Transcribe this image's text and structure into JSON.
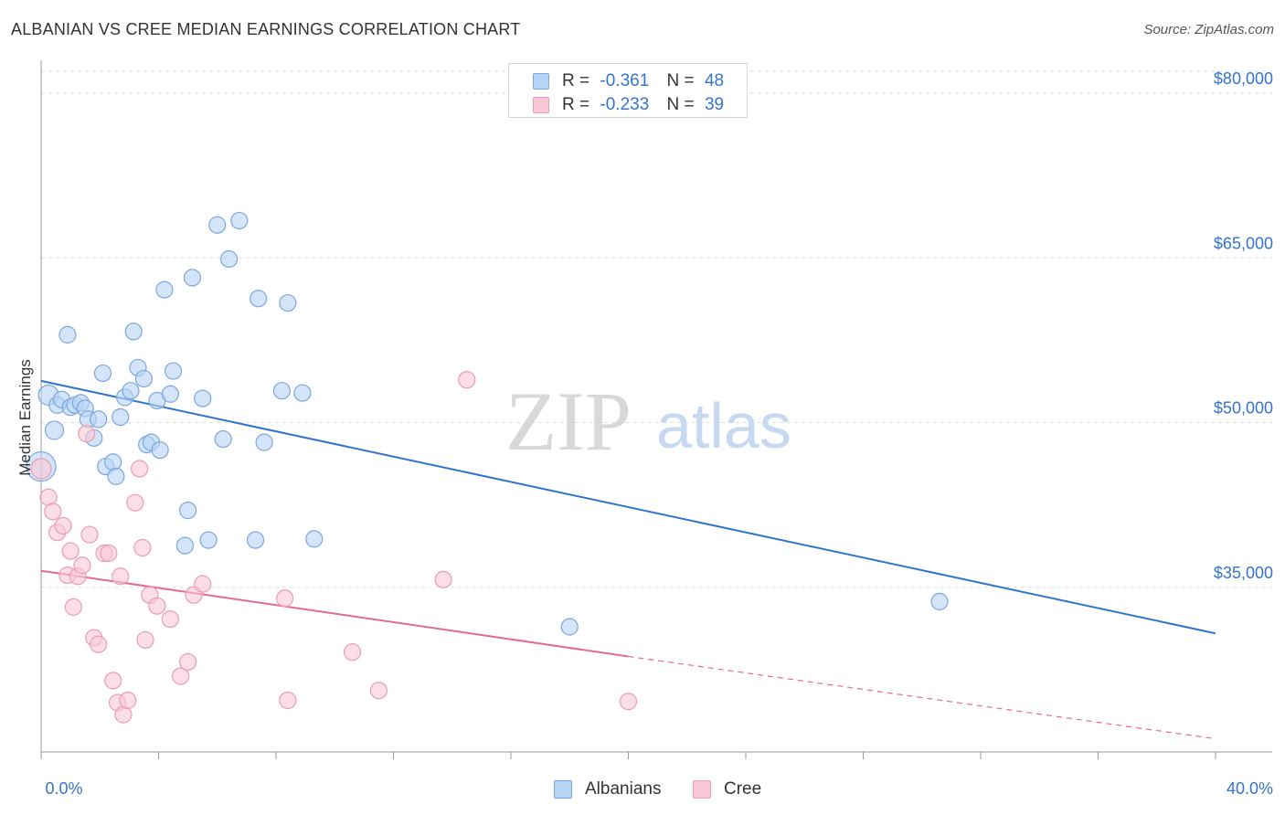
{
  "title": "ALBANIAN VS CREE MEDIAN EARNINGS CORRELATION CHART",
  "source": "Source: ZipAtlas.com",
  "watermark": {
    "zip": "ZIP",
    "atlas": "atlas"
  },
  "colors": {
    "albanian_fill": "#b7d3f5",
    "albanian_stroke": "#7aa7e0",
    "albanian_line": "#2f74cf",
    "cree_fill": "#f8c8d6",
    "cree_stroke": "#ec9bb5",
    "cree_line": "#e56a93",
    "axis_label": "#3474cc",
    "grid": "#dddddd"
  },
  "legend": {
    "rows": [
      {
        "r_label": "R =",
        "r_value": "-0.361",
        "n_label": "N =",
        "n_value": "48",
        "series": "albanians"
      },
      {
        "r_label": "R =",
        "r_value": "-0.233",
        "n_label": "N =",
        "n_value": "39",
        "series": "cree"
      }
    ]
  },
  "bottom_legend": {
    "albanians": "Albanians",
    "cree": "Cree"
  },
  "chart_data": {
    "type": "scatter",
    "title": "ALBANIAN VS CREE MEDIAN EARNINGS CORRELATION CHART",
    "xlabel": "",
    "ylabel": "Median Earnings",
    "xlim": [
      0,
      40
    ],
    "ylim": [
      20000,
      82000
    ],
    "x_tick_labels": [
      "0.0%",
      "40.0%"
    ],
    "y_ticks": [
      35000,
      50000,
      65000,
      80000
    ],
    "y_tick_labels": [
      "$35,000",
      "$50,000",
      "$65,000",
      "$80,000"
    ],
    "grid": true,
    "series": [
      {
        "name": "Albanians",
        "r": -0.361,
        "n": 48,
        "trend": {
          "x": [
            0,
            40
          ],
          "y": [
            53800,
            30800
          ],
          "style": "solid"
        },
        "points": [
          [
            0.0,
            46000,
            16
          ],
          [
            0.25,
            52500,
            11
          ],
          [
            0.45,
            49300,
            10
          ],
          [
            0.55,
            51600,
            9
          ],
          [
            0.7,
            52100,
            9
          ],
          [
            0.9,
            58000,
            9
          ],
          [
            1.0,
            51400,
            9
          ],
          [
            1.15,
            51600,
            9
          ],
          [
            1.35,
            51800,
            9
          ],
          [
            1.5,
            51300,
            9
          ],
          [
            1.6,
            50300,
            9
          ],
          [
            1.8,
            48600,
            9
          ],
          [
            1.95,
            50300,
            9
          ],
          [
            2.1,
            54500,
            9
          ],
          [
            2.2,
            46000,
            9
          ],
          [
            2.45,
            46400,
            9
          ],
          [
            2.55,
            45100,
            9
          ],
          [
            2.7,
            50500,
            9
          ],
          [
            2.85,
            52300,
            9
          ],
          [
            3.05,
            52900,
            9
          ],
          [
            3.15,
            58300,
            9
          ],
          [
            3.3,
            55000,
            9
          ],
          [
            3.5,
            54000,
            9
          ],
          [
            3.6,
            48000,
            9
          ],
          [
            3.75,
            48200,
            9
          ],
          [
            3.95,
            52000,
            9
          ],
          [
            4.05,
            47500,
            9
          ],
          [
            4.2,
            62100,
            9
          ],
          [
            4.4,
            52600,
            9
          ],
          [
            4.5,
            54700,
            9
          ],
          [
            4.9,
            38800,
            9
          ],
          [
            5.0,
            42000,
            9
          ],
          [
            5.15,
            63200,
            9
          ],
          [
            5.5,
            52200,
            9
          ],
          [
            5.7,
            39300,
            9
          ],
          [
            6.0,
            68000,
            9
          ],
          [
            6.2,
            48500,
            9
          ],
          [
            6.4,
            64900,
            9
          ],
          [
            6.75,
            68400,
            9
          ],
          [
            7.3,
            39300,
            9
          ],
          [
            7.4,
            61300,
            9
          ],
          [
            7.6,
            48200,
            9
          ],
          [
            8.2,
            52900,
            9
          ],
          [
            8.4,
            60900,
            9
          ],
          [
            8.9,
            52700,
            9
          ],
          [
            9.3,
            39400,
            9
          ],
          [
            18.0,
            31400,
            9
          ],
          [
            30.6,
            33700,
            9
          ]
        ]
      },
      {
        "name": "Cree",
        "r": -0.233,
        "n": 39,
        "trend": {
          "x": [
            0,
            20
          ],
          "y": [
            36500,
            28700
          ],
          "style": "solid",
          "dashed_to": {
            "x": 40,
            "y": 21200
          }
        },
        "points": [
          [
            0.0,
            45800,
            11
          ],
          [
            0.25,
            43200,
            9
          ],
          [
            0.4,
            41900,
            9
          ],
          [
            0.55,
            40000,
            9
          ],
          [
            0.75,
            40600,
            9
          ],
          [
            0.9,
            36100,
            9
          ],
          [
            1.0,
            38300,
            9
          ],
          [
            1.1,
            33200,
            9
          ],
          [
            1.25,
            36000,
            9
          ],
          [
            1.4,
            37000,
            9
          ],
          [
            1.55,
            49000,
            9
          ],
          [
            1.65,
            39800,
            9
          ],
          [
            1.8,
            30400,
            9
          ],
          [
            1.95,
            29800,
            9
          ],
          [
            2.15,
            38100,
            9
          ],
          [
            2.3,
            38100,
            9
          ],
          [
            2.45,
            26500,
            9
          ],
          [
            2.6,
            24500,
            9
          ],
          [
            2.7,
            36000,
            9
          ],
          [
            2.8,
            23400,
            9
          ],
          [
            2.95,
            24700,
            9
          ],
          [
            3.2,
            42700,
            9
          ],
          [
            3.35,
            45800,
            9
          ],
          [
            3.45,
            38600,
            9
          ],
          [
            3.55,
            30200,
            9
          ],
          [
            3.7,
            34300,
            9
          ],
          [
            3.95,
            33300,
            9
          ],
          [
            4.4,
            32100,
            9
          ],
          [
            4.75,
            26900,
            9
          ],
          [
            5.0,
            28200,
            9
          ],
          [
            5.2,
            34300,
            9
          ],
          [
            5.5,
            35300,
            9
          ],
          [
            8.3,
            34000,
            9
          ],
          [
            8.4,
            24700,
            9
          ],
          [
            10.6,
            29100,
            9
          ],
          [
            11.5,
            25600,
            9
          ],
          [
            13.7,
            35700,
            9
          ],
          [
            14.5,
            53900,
            9
          ],
          [
            20.0,
            24600,
            9
          ]
        ]
      }
    ]
  }
}
